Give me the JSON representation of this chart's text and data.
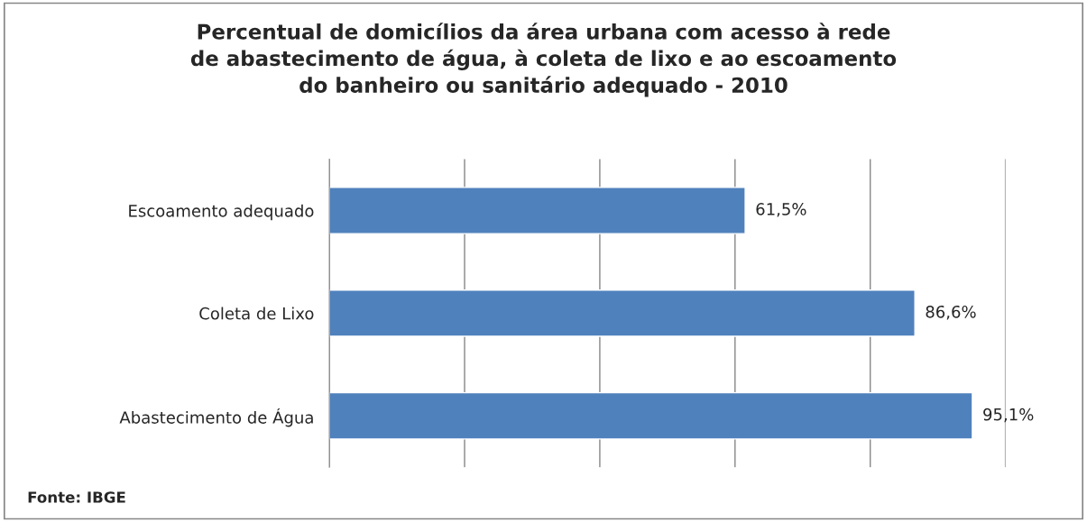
{
  "chart_data": {
    "type": "bar",
    "orientation": "horizontal",
    "title": "Percentual de domicílios da área urbana com acesso à rede\nde abastecimento de água, à coleta de lixo e ao escoamento\ndo banheiro ou sanitário adequado - 2010",
    "categories": [
      "Escoamento adequado",
      "Coleta de Lixo",
      "Abastecimento de Água"
    ],
    "values": [
      61.5,
      86.6,
      95.1
    ],
    "value_labels": [
      "61,5%",
      "86,6%",
      "95,1%"
    ],
    "color": "#4f81bd",
    "xlim": [
      0,
      100
    ],
    "xticks": [
      {
        "value": 0,
        "label": null
      },
      {
        "value": 20,
        "label": null
      },
      {
        "value": 40,
        "label": null
      },
      {
        "value": 60,
        "label": null
      },
      {
        "value": 80,
        "label": null
      },
      {
        "value": 100,
        "label": null
      }
    ],
    "tick_labels": "y",
    "grid": "x",
    "legend": false,
    "annotations": [
      "Fonte: IBGE"
    ]
  }
}
